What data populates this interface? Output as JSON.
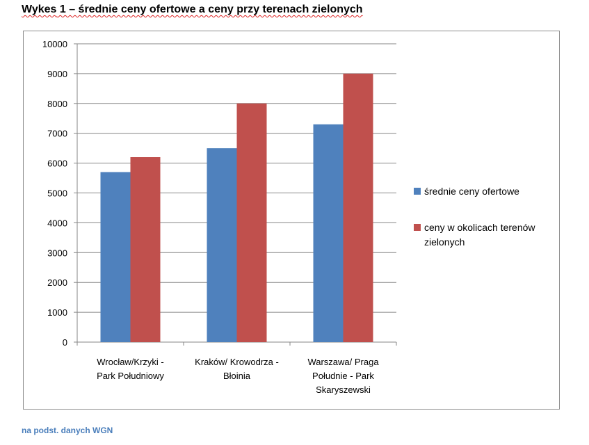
{
  "header": {
    "title_first": "Wykes",
    "title_rest": " 1 – średnie ceny ofertowe a ceny przy terenach zielonych"
  },
  "footer": {
    "source": "na podst.  danych  WGN"
  },
  "chart_data": {
    "type": "bar",
    "title": "",
    "xlabel": "",
    "ylabel": "",
    "ylim": [
      0,
      10000
    ],
    "yticks": [
      0,
      1000,
      2000,
      3000,
      4000,
      5000,
      6000,
      7000,
      8000,
      9000,
      10000
    ],
    "grid": true,
    "legend_position": "right",
    "categories": [
      [
        "Wrocław/Krzyki -",
        "Park Południowy"
      ],
      [
        "Kraków/ Krowodrza -",
        "Błoinia"
      ],
      [
        "Warszawa/ Praga",
        "Południe - Park",
        "Skaryszewski"
      ]
    ],
    "series": [
      {
        "name": [
          "średnie ceny ofertowe"
        ],
        "color": "#4f81bd",
        "values": [
          5700,
          6500,
          7300
        ]
      },
      {
        "name": [
          "ceny w okolicach terenów",
          "zielonych"
        ],
        "color": "#c0504d",
        "values": [
          6200,
          8000,
          9000
        ]
      }
    ]
  }
}
